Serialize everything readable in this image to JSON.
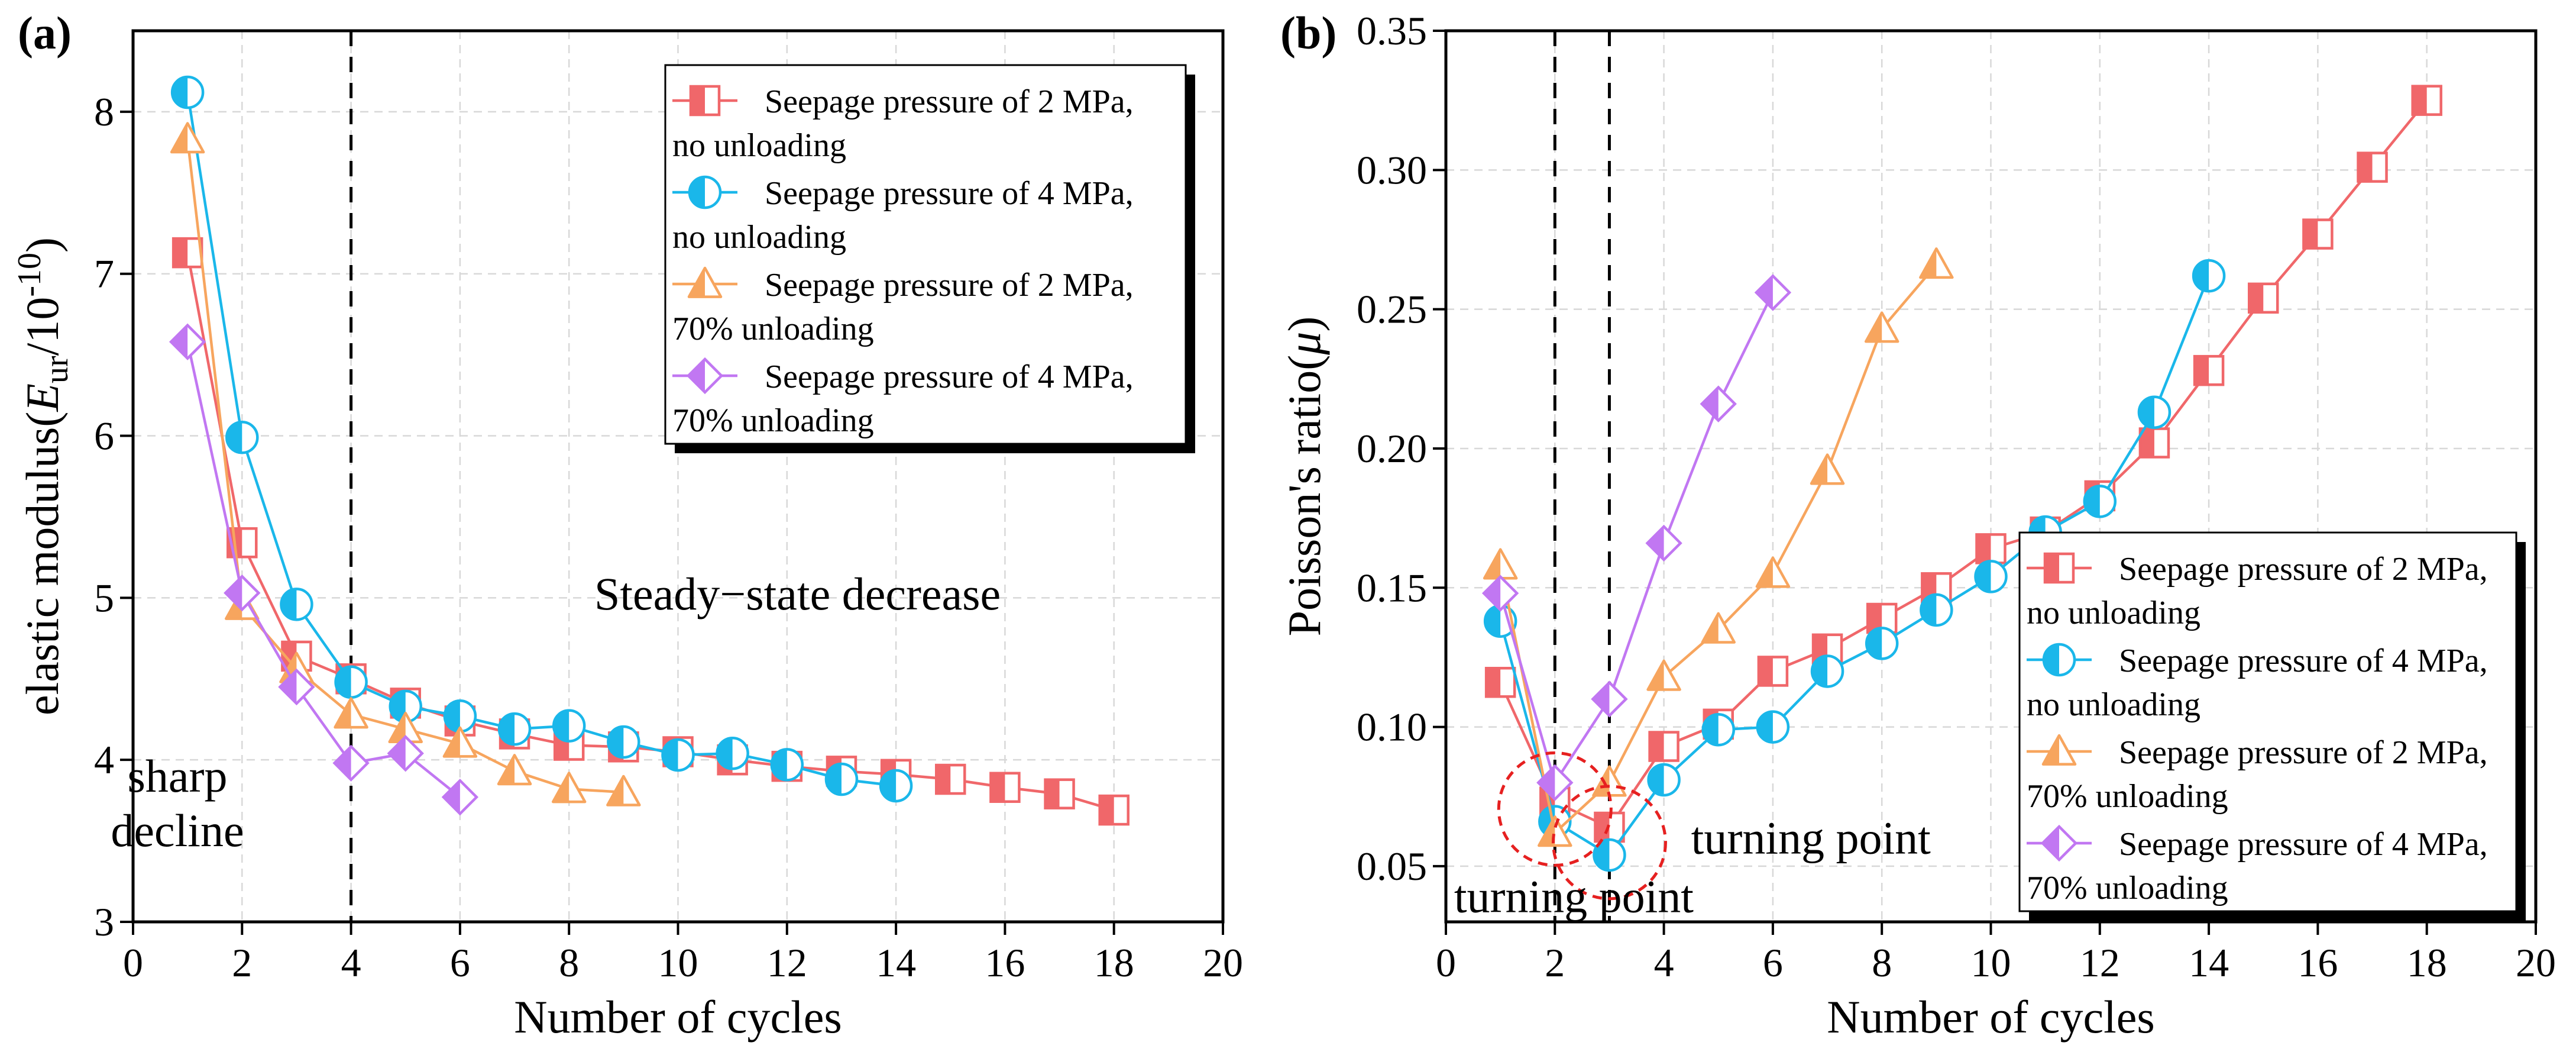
{
  "chart_data": [
    {
      "type": "line",
      "panel_label": "(a)",
      "title": "",
      "xlabel": "Number of cycles",
      "ylabel": {
        "prefix": "elastic modulus(",
        "symbol": "E",
        "subscript": "ur",
        "slash": "/10",
        "exponent": "-10",
        "suffix": ")"
      },
      "xlim": [
        0,
        20
      ],
      "ylim": [
        3,
        8.5
      ],
      "xticks": [
        0,
        2,
        4,
        6,
        8,
        10,
        12,
        14,
        16,
        18,
        20
      ],
      "xtick_labels": [
        "0",
        "2",
        "4",
        "6",
        "8",
        "10",
        "12",
        "14",
        "16",
        "18",
        "20"
      ],
      "yticks": [
        3,
        4,
        5,
        6,
        7,
        8
      ],
      "ytick_labels": [
        "3",
        "4",
        "5",
        "6",
        "7",
        "8"
      ],
      "grid": true,
      "legend_position": "top-right",
      "reference_lines_x": [
        4
      ],
      "annotations": [
        {
          "lines": [
            "sharp",
            "decline"
          ],
          "x": 0.8,
          "y": 3.9
        },
        {
          "lines": [
            "Steady−state decrease"
          ],
          "x": 8.5,
          "y": 5.02
        }
      ],
      "series": [
        {
          "name": "Seepage pressure of 2 MPa,",
          "name_line2": "no unloading",
          "color": "#f0676a",
          "marker": "square-half",
          "x": [
            1,
            2,
            3,
            4,
            5,
            6,
            7,
            8,
            9,
            10,
            11,
            12,
            13,
            14,
            15,
            16,
            17,
            18
          ],
          "values": [
            7.13,
            5.34,
            4.64,
            4.5,
            4.35,
            4.24,
            4.16,
            4.09,
            4.08,
            4.05,
            4.0,
            3.96,
            3.93,
            3.91,
            3.88,
            3.83,
            3.79,
            3.69
          ]
        },
        {
          "name": "Seepage pressure of 4 MPa,",
          "name_line2": "no unloading",
          "color": "#1ab7ea",
          "marker": "circle-half",
          "x": [
            1,
            2,
            3,
            4,
            5,
            6,
            7,
            8,
            9,
            10,
            11,
            12,
            13,
            14
          ],
          "values": [
            8.12,
            5.99,
            4.96,
            4.48,
            4.33,
            4.27,
            4.19,
            4.21,
            4.11,
            4.03,
            4.04,
            3.97,
            3.88,
            3.84
          ]
        },
        {
          "name": "Seepage pressure of 2 MPa,",
          "name_line2": "70% unloading",
          "color": "#f7a55e",
          "marker": "triangle-half",
          "x": [
            1,
            2,
            3,
            4,
            5,
            6,
            7,
            8,
            9
          ],
          "values": [
            7.83,
            4.95,
            4.56,
            4.28,
            4.19,
            4.1,
            3.93,
            3.82,
            3.8
          ]
        },
        {
          "name": "Seepage pressure of 4 MPa,",
          "name_line2": "70% unloading",
          "color": "#c177f2",
          "marker": "diamond-half",
          "x": [
            1,
            2,
            3,
            4,
            5,
            6
          ],
          "values": [
            6.58,
            5.03,
            4.45,
            3.98,
            4.04,
            3.77
          ]
        }
      ]
    },
    {
      "type": "line",
      "panel_label": "(b)",
      "title": "",
      "xlabel": "Number of cycles",
      "ylabel": {
        "prefix": "Poisson's ratio(",
        "symbol": "μ",
        "suffix": ")"
      },
      "xlim": [
        0,
        20
      ],
      "ylim": [
        0.03,
        0.35
      ],
      "xticks": [
        0,
        2,
        4,
        6,
        8,
        10,
        12,
        14,
        16,
        18,
        20
      ],
      "xtick_labels": [
        "0",
        "2",
        "4",
        "6",
        "8",
        "10",
        "12",
        "14",
        "16",
        "18",
        "20"
      ],
      "yticks": [
        0.05,
        0.1,
        0.15,
        0.2,
        0.25,
        0.3,
        0.35
      ],
      "ytick_labels": [
        "0.05",
        "0.10",
        "0.15",
        "0.20",
        "0.25",
        "0.30",
        "0.35"
      ],
      "grid": true,
      "legend_position": "bottom-right",
      "reference_lines_x": [
        2,
        3
      ],
      "highlight_circles": [
        {
          "x": 2,
          "y": 0.0705
        },
        {
          "x": 3,
          "y": 0.0585
        }
      ],
      "annotations": [
        {
          "lines": [
            "turning point"
          ],
          "x": 0.15,
          "y": 0.0335
        },
        {
          "lines": [
            "turning point"
          ],
          "x": 4.5,
          "y": 0.0545
        }
      ],
      "series": [
        {
          "name": "Seepage pressure of 2 MPa,",
          "name_line2": "no unloading",
          "color": "#f0676a",
          "marker": "square-half",
          "x": [
            1,
            2,
            3,
            4,
            5,
            6,
            7,
            8,
            9,
            10,
            11,
            12,
            13,
            14,
            15,
            16,
            17,
            18
          ],
          "values": [
            0.116,
            0.073,
            0.064,
            0.093,
            0.101,
            0.12,
            0.128,
            0.139,
            0.15,
            0.164,
            0.17,
            0.183,
            0.202,
            0.228,
            0.254,
            0.277,
            0.301,
            0.325
          ]
        },
        {
          "name": "Seepage pressure of 4 MPa,",
          "name_line2": "no unloading",
          "color": "#1ab7ea",
          "marker": "circle-half",
          "x": [
            1,
            2,
            3,
            4,
            5,
            6,
            7,
            8,
            9,
            10,
            11,
            12,
            13,
            14
          ],
          "values": [
            0.138,
            0.066,
            0.054,
            0.081,
            0.099,
            0.1,
            0.12,
            0.13,
            0.142,
            0.154,
            0.17,
            0.181,
            0.213,
            0.262
          ]
        },
        {
          "name": "Seepage pressure of 2 MPa,",
          "name_line2": "70% unloading",
          "color": "#f7a55e",
          "marker": "triangle-half",
          "x": [
            1,
            2,
            3,
            4,
            5,
            6,
            7,
            8,
            9
          ],
          "values": [
            0.158,
            0.062,
            0.08,
            0.118,
            0.135,
            0.155,
            0.192,
            0.243,
            0.266
          ]
        },
        {
          "name": "Seepage pressure of 4 MPa,",
          "name_line2": "70% unloading",
          "color": "#c177f2",
          "marker": "diamond-half",
          "x": [
            1,
            2,
            3,
            4,
            5,
            6
          ],
          "values": [
            0.148,
            0.08,
            0.11,
            0.166,
            0.216,
            0.256
          ]
        }
      ]
    }
  ]
}
